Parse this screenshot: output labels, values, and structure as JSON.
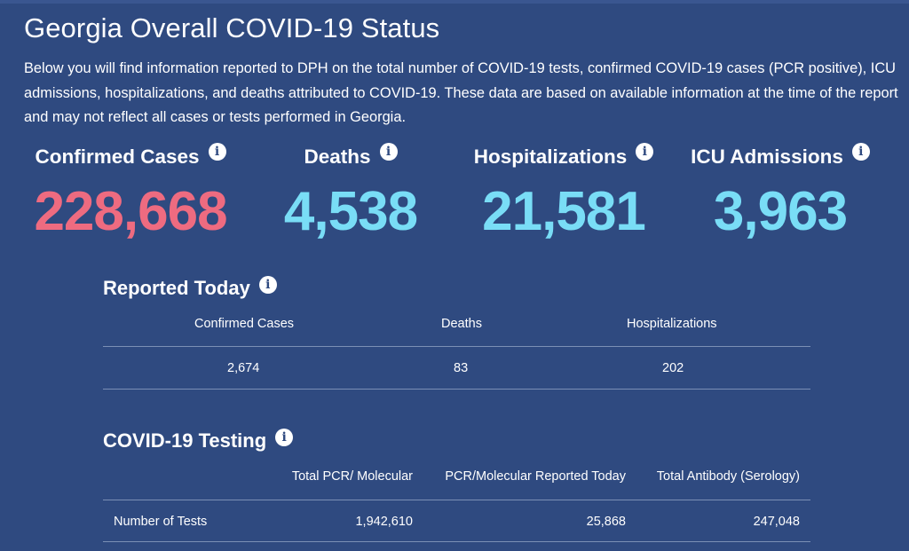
{
  "page": {
    "title": "Georgia Overall COVID-19 Status",
    "description": "Below you will find information reported to DPH on the total number of COVID-19 tests, confirmed COVID-19 cases (PCR positive), ICU admissions, hospitalizations, and deaths attributed to COVID-19. These data are based on available information at the time of the report and may not reflect all cases or tests performed in Georgia."
  },
  "info_icon_glyph": "i",
  "colors": {
    "background": "#2f4a80",
    "confirmed_value": "#ee6b80",
    "other_values": "#79ddf6"
  },
  "stats": [
    {
      "label": "Confirmed Cases",
      "value": "228,668"
    },
    {
      "label": "Deaths",
      "value": "4,538"
    },
    {
      "label": "Hospitalizations",
      "value": "21,581"
    },
    {
      "label": "ICU Admissions",
      "value": "3,963"
    }
  ],
  "reported_today": {
    "title": "Reported Today",
    "headers": [
      "Confirmed Cases",
      "Deaths",
      "Hospitalizations"
    ],
    "values": [
      "2,674",
      "83",
      "202"
    ]
  },
  "testing": {
    "title": "COVID-19 Testing",
    "headers": [
      "Total PCR/ Molecular",
      "PCR/Molecular Reported Today",
      "Total Antibody (Serology)"
    ],
    "row_label": "Number of Tests",
    "values": [
      "1,942,610",
      "25,868",
      "247,048"
    ]
  }
}
